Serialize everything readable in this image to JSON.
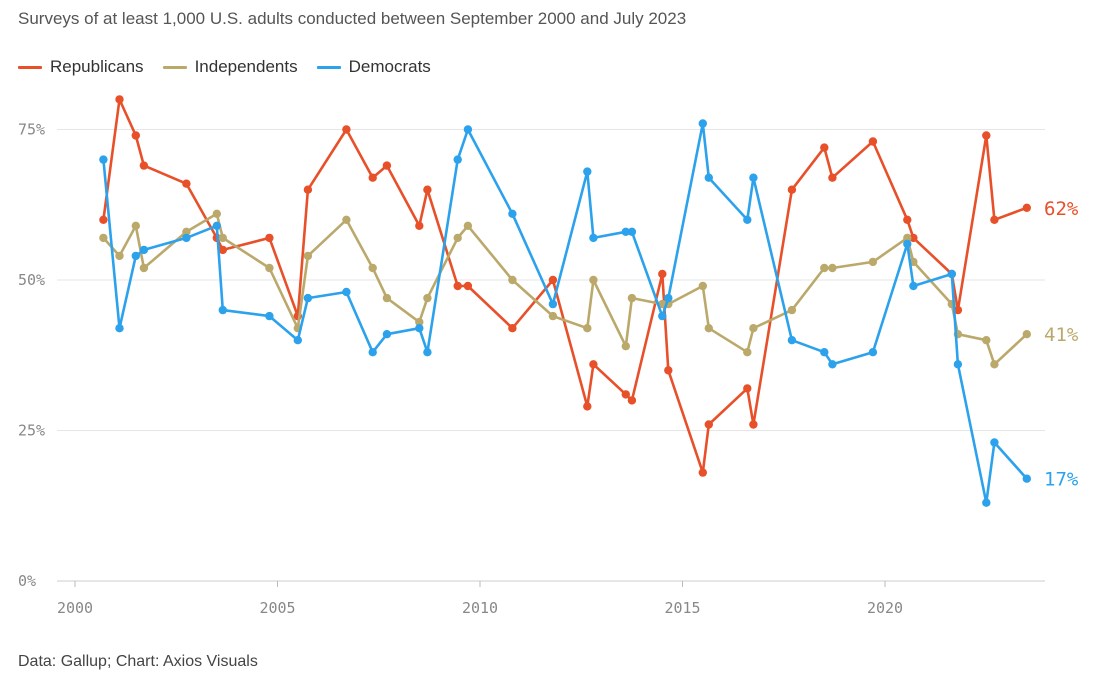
{
  "chart_data": {
    "type": "line",
    "subtitle": "Surveys of at least 1,000 U.S. adults conducted between September 2000 and July 2023",
    "source": "Data: Gallup; Chart: Axios Visuals",
    "xlim": [
      2000,
      2023.7
    ],
    "ylim": [
      0,
      80
    ],
    "x_ticks": [
      2000,
      2005,
      2010,
      2015,
      2020
    ],
    "y_ticks": [
      {
        "value": 0,
        "label": "0%"
      },
      {
        "value": 25,
        "label": "25%"
      },
      {
        "value": 50,
        "label": "50%"
      },
      {
        "value": 75,
        "label": "75%"
      }
    ],
    "grid": "horizontal",
    "legend_position": "top-left",
    "series": [
      {
        "name": "Republicans",
        "color": "#e8502a",
        "end_label": "62%",
        "x": [
          2000.7,
          2001.1,
          2001.5,
          2001.7,
          2002.75,
          2003.5,
          2003.65,
          2004.8,
          2005.5,
          2005.75,
          2006.7,
          2007.35,
          2007.7,
          2008.5,
          2008.7,
          2009.45,
          2009.7,
          2010.8,
          2011.8,
          2012.65,
          2012.8,
          2013.6,
          2013.75,
          2014.5,
          2014.65,
          2015.5,
          2015.65,
          2016.6,
          2016.75,
          2017.7,
          2018.5,
          2018.7,
          2019.7,
          2020.55,
          2020.7,
          2021.65,
          2021.8,
          2022.5,
          2022.7,
          2023.5
        ],
        "y": [
          60,
          80,
          74,
          69,
          66,
          57,
          55,
          57,
          44,
          65,
          75,
          67,
          69,
          59,
          65,
          49,
          49,
          42,
          50,
          29,
          36,
          31,
          30,
          51,
          35,
          18,
          26,
          32,
          26,
          65,
          72,
          67,
          73,
          60,
          57,
          51,
          45,
          74,
          60,
          62
        ]
      },
      {
        "name": "Independents",
        "color": "#bba96c",
        "end_label": "41%",
        "x": [
          2000.7,
          2001.1,
          2001.5,
          2001.7,
          2002.75,
          2003.5,
          2003.65,
          2004.8,
          2005.5,
          2005.75,
          2006.7,
          2007.35,
          2007.7,
          2008.5,
          2008.7,
          2009.45,
          2009.7,
          2010.8,
          2011.8,
          2012.65,
          2012.8,
          2013.6,
          2013.75,
          2014.5,
          2014.65,
          2015.5,
          2015.65,
          2016.6,
          2016.75,
          2017.7,
          2018.5,
          2018.7,
          2019.7,
          2020.55,
          2020.7,
          2021.65,
          2021.8,
          2022.5,
          2022.7,
          2023.5
        ],
        "y": [
          57,
          54,
          59,
          52,
          58,
          61,
          57,
          52,
          42,
          54,
          60,
          52,
          47,
          43,
          47,
          57,
          59,
          50,
          44,
          42,
          50,
          39,
          47,
          46,
          46,
          49,
          42,
          38,
          42,
          45,
          52,
          52,
          53,
          57,
          53,
          46,
          41,
          40,
          36,
          41
        ]
      },
      {
        "name": "Democrats",
        "color": "#2ca2ec",
        "end_label": "17%",
        "x": [
          2000.7,
          2001.1,
          2001.5,
          2001.7,
          2002.75,
          2003.5,
          2003.65,
          2004.8,
          2005.5,
          2005.75,
          2006.7,
          2007.35,
          2007.7,
          2008.5,
          2008.7,
          2009.45,
          2009.7,
          2010.8,
          2011.8,
          2012.65,
          2012.8,
          2013.6,
          2013.75,
          2014.5,
          2014.65,
          2015.5,
          2015.65,
          2016.6,
          2016.75,
          2017.7,
          2018.5,
          2018.7,
          2019.7,
          2020.55,
          2020.7,
          2021.65,
          2021.8,
          2022.5,
          2022.7,
          2023.5
        ],
        "y": [
          70,
          42,
          54,
          55,
          57,
          59,
          45,
          44,
          40,
          47,
          48,
          38,
          41,
          42,
          38,
          70,
          75,
          61,
          46,
          68,
          57,
          58,
          58,
          44,
          47,
          76,
          67,
          60,
          67,
          40,
          38,
          36,
          38,
          56,
          49,
          51,
          36,
          13,
          23,
          17
        ]
      }
    ]
  }
}
